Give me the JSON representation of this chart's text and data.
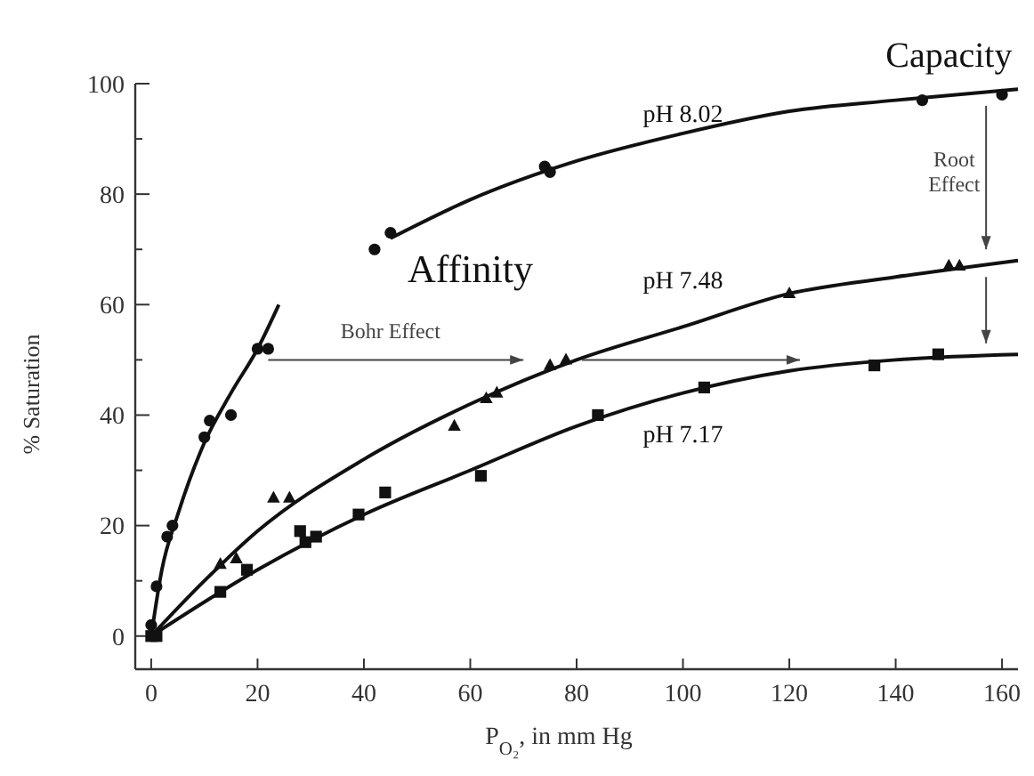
{
  "chart_data": {
    "type": "scatter",
    "xlabel": "P$_{O₂}$, in mm Hg",
    "ylabel": "% Saturation",
    "xlim": [
      -3,
      163
    ],
    "ylim": [
      -6,
      100
    ],
    "xticks": [
      0,
      20,
      40,
      60,
      80,
      100,
      120,
      140,
      160
    ],
    "yticks": [
      0,
      {
        "value": 10,
        "label": null
      },
      20,
      {
        "value": 30,
        "label": null
      },
      40,
      {
        "value": 50,
        "label": null
      },
      60,
      {
        "value": 70,
        "label": null
      },
      80,
      {
        "value": 90,
        "label": null
      },
      100
    ],
    "grid": false,
    "series": [
      {
        "marker": "circle",
        "color": "#111111",
        "x": [
          0,
          1,
          3,
          4,
          10,
          11,
          15,
          20,
          22,
          42,
          45,
          74,
          75,
          145,
          160
        ],
        "values": [
          2,
          9,
          18,
          20,
          36,
          39,
          40,
          52,
          52,
          70,
          73,
          85,
          84,
          97,
          98
        ]
      },
      {
        "marker": "triangle",
        "color": "#111111",
        "x": [
          13,
          16,
          23,
          26,
          57,
          63,
          65,
          75,
          78,
          120,
          150,
          152
        ],
        "values": [
          13,
          14,
          25,
          25,
          38,
          43,
          44,
          49,
          50,
          62,
          67,
          67
        ]
      },
      {
        "marker": "square",
        "color": "#111111",
        "x": [
          0,
          1,
          13,
          18,
          28,
          29,
          31,
          39,
          44,
          62,
          84,
          104,
          136,
          148
        ],
        "values": [
          0,
          0,
          8,
          12,
          19,
          17,
          18,
          22,
          26,
          29,
          40,
          45,
          49,
          51
        ]
      },
      {
        "type": "line",
        "marker": "none",
        "color": "#111111",
        "x": [
          0,
          2,
          5,
          10,
          15,
          20,
          24,
          30,
          45,
          60,
          80,
          100,
          120,
          140,
          163
        ],
        "values": [
          0,
          12,
          22,
          35,
          44,
          52,
          60,
          null,
          72,
          79,
          86,
          91,
          95,
          97,
          99
        ]
      },
      {
        "type": "line",
        "marker": "none",
        "color": "#111111",
        "x": [
          0,
          10,
          20,
          40,
          60,
          80,
          100,
          120,
          140,
          163
        ],
        "values": [
          0,
          10,
          19,
          32,
          42,
          50,
          56,
          62,
          65,
          68
        ]
      },
      {
        "type": "line",
        "marker": "none",
        "color": "#111111",
        "x": [
          0,
          20,
          40,
          60,
          80,
          100,
          120,
          140,
          163
        ],
        "values": [
          0,
          12,
          22,
          30,
          38,
          44,
          48,
          50,
          51
        ]
      }
    ],
    "annotations": [
      "pH 8.02",
      "pH 7.48",
      "pH 7.17",
      "Capacity",
      "Affinity",
      "Bohr Effect",
      "Root Effect"
    ]
  }
}
